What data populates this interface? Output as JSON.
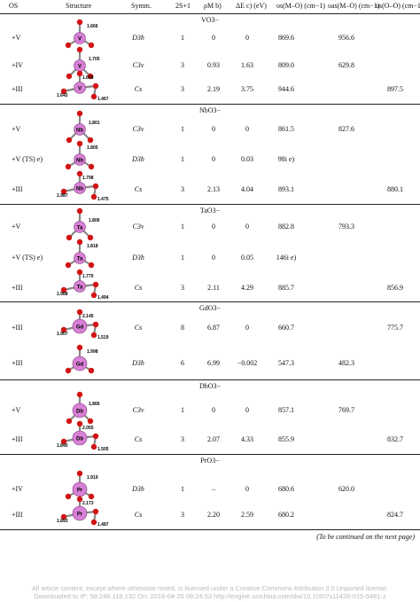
{
  "header": {
    "os": "OS",
    "structure": "Structure",
    "symm": "Symm.",
    "spin": "2S+1",
    "rho": "ρM b)",
    "de": "ΔE c) (eV)",
    "nu_s": "υs(M–O) (cm−1)",
    "nu_as": "υas(M–O) (cm−1)",
    "nu_oo": "υs(O–O) (cm−1)"
  },
  "sections": [
    {
      "title": "VO3−",
      "rows": [
        {
          "os": "+V",
          "symm": "D3h",
          "spin": "1",
          "rho": "0",
          "de": "0",
          "nu_s": "869.6",
          "nu_as": "956.6",
          "nu_oo": "",
          "atom": "V",
          "labels": [
            "1.666"
          ]
        },
        {
          "os": "+IV",
          "symm": "C3v",
          "spin": "3",
          "rho": "0.93",
          "de": "1.63",
          "nu_s": "809.0",
          "nu_as": "629.8",
          "nu_oo": "",
          "atom": "V",
          "labels": [
            "1.705"
          ]
        },
        {
          "os": "+III",
          "symm": "Cs",
          "spin": "3",
          "rho": "2.19",
          "de": "3.75",
          "nu_s": "944.6",
          "nu_as": "",
          "nu_oo": "897.5",
          "atom": "V",
          "labels": [
            "1.659",
            "1.642",
            "1.467"
          ]
        }
      ]
    },
    {
      "title": "NbO3−",
      "rows": [
        {
          "os": "+V",
          "symm": "C3v",
          "spin": "1",
          "rho": "0",
          "de": "0",
          "nu_s": "861.5",
          "nu_as": "827.6",
          "nu_oo": "",
          "atom": "Nb",
          "labels": [
            "1.801"
          ]
        },
        {
          "os": "+V (TS) e)",
          "symm": "D3h",
          "spin": "1",
          "rho": "0",
          "de": "0.03",
          "nu_s": "98i e)",
          "nu_as": "",
          "nu_oo": "",
          "atom": "Nb",
          "labels": [
            "1.805"
          ]
        },
        {
          "os": "+III",
          "symm": "Cs",
          "spin": "3",
          "rho": "2.13",
          "de": "4.04",
          "nu_s": "893.1",
          "nu_as": "",
          "nu_oo": "880.1",
          "atom": "Nb",
          "labels": [
            "1.798",
            "1.987",
            "1.475"
          ]
        }
      ]
    },
    {
      "title": "TaO3−",
      "rows": [
        {
          "os": "+V",
          "symm": "C3v",
          "spin": "1",
          "rho": "0",
          "de": "0",
          "nu_s": "882.8",
          "nu_as": "793.3",
          "nu_oo": "",
          "atom": "Ta",
          "labels": [
            "1.806"
          ]
        },
        {
          "os": "+V (TS) e)",
          "symm": "D3h",
          "spin": "1",
          "rho": "0",
          "de": "0.05",
          "nu_s": "146i e)",
          "nu_as": "",
          "nu_oo": "",
          "atom": "Ta",
          "labels": [
            "1.818"
          ]
        },
        {
          "os": "+III",
          "symm": "Cs",
          "spin": "3",
          "rho": "2.11",
          "de": "4.29",
          "nu_s": "885.7",
          "nu_as": "",
          "nu_oo": "856.9",
          "atom": "Ta",
          "labels": [
            "1.770",
            "1.988",
            "1.494"
          ]
        }
      ]
    },
    {
      "title": "GdO3−",
      "rows": [
        {
          "os": "+III",
          "symm": "Cs",
          "spin": "8",
          "rho": "6.87",
          "de": "0",
          "nu_s": "660.7",
          "nu_as": "",
          "nu_oo": "775.7",
          "atom": "Gd",
          "labels": [
            "2.145",
            "1.907",
            "1.519"
          ]
        },
        {
          "os": "+III",
          "symm": "D3h",
          "spin": "6",
          "rho": "6.99",
          "de": "−0.002",
          "nu_s": "547.3",
          "nu_as": "482.3",
          "nu_oo": "",
          "atom": "Gd",
          "labels": [
            "1.998"
          ]
        }
      ]
    },
    {
      "title": "DbO3−",
      "rows": [
        {
          "os": "+V",
          "symm": "C3v",
          "spin": "1",
          "rho": "0",
          "de": "0",
          "nu_s": "857.1",
          "nu_as": "769.7",
          "nu_oo": "",
          "atom": "Db",
          "labels": [
            "1.866"
          ]
        },
        {
          "os": "+III",
          "symm": "Cs",
          "spin": "3",
          "rho": "2.07",
          "de": "4.33",
          "nu_s": "855.9",
          "nu_as": "",
          "nu_oo": "832.7",
          "atom": "Db",
          "labels": [
            "2.055",
            "1.840",
            "1.505"
          ]
        }
      ]
    },
    {
      "title": "PrO3−",
      "rows": [
        {
          "os": "+IV",
          "symm": "D3h",
          "spin": "1",
          "rho": "–",
          "de": "0",
          "nu_s": "680.6",
          "nu_as": "620.0",
          "nu_oo": "",
          "atom": "Pr",
          "labels": [
            "1.919"
          ]
        },
        {
          "os": "+III",
          "symm": "Cs",
          "spin": "3",
          "rho": "2.20",
          "de": "2.59",
          "nu_s": "680.2",
          "nu_as": "",
          "nu_oo": "824.7",
          "atom": "Pr",
          "labels": [
            "2.173",
            "1.893",
            "1.487"
          ]
        }
      ]
    }
  ],
  "continued": "(To be continued on the next page)",
  "watermark": {
    "line1": "All article content, except where otherwise noted, is licensed under a Creative Commons Attribution 3.0 Unported license.",
    "line2": "Downloaded to IP: 58.246.118.132 On: 2016-04-25 08:24:53 http://engine.scichina.com/doi/10.1007/s11426-015-5481-z"
  },
  "colors": {
    "metal": "#d97fd6",
    "oxygen": "#d21414",
    "rule": "#222222",
    "watermark": "#b9b9b9"
  }
}
